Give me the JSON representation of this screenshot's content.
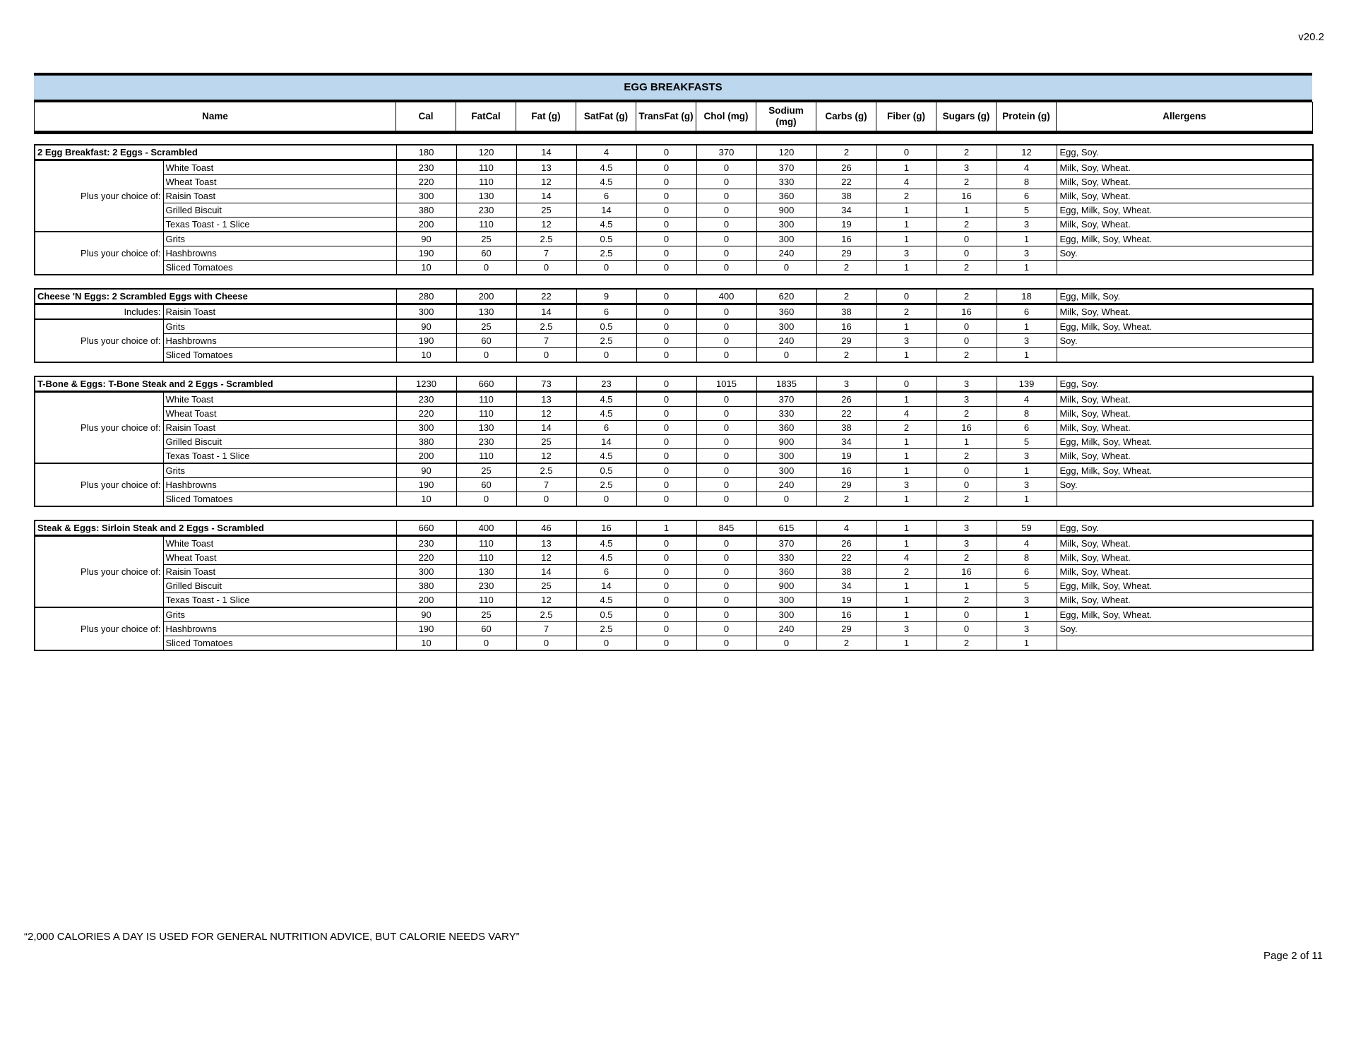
{
  "version_label": "v20.2",
  "banner": {
    "title": "EGG BREAKFASTS",
    "bg_color": "#BDD7EE"
  },
  "columns": [
    "Name",
    "Cal",
    "FatCal",
    "Fat (g)",
    "SatFat (g)",
    "TransFat (g)",
    "Chol (mg)",
    "Sodium (mg)",
    "Carbs (g)",
    "Fiber (g)",
    "Sugars (g)",
    "Protein (g)",
    "Allergens"
  ],
  "sections": [
    {
      "title": "2 Egg Breakfast: 2 Eggs - Scrambled",
      "values": [
        "180",
        "120",
        "14",
        "4",
        "0",
        "370",
        "120",
        "2",
        "0",
        "2",
        "12"
      ],
      "allergens": "Egg, Soy.",
      "groups": [
        {
          "label": "Plus your choice of:",
          "items": [
            {
              "name": "White Toast",
              "values": [
                "230",
                "110",
                "13",
                "4.5",
                "0",
                "0",
                "370",
                "26",
                "1",
                "3",
                "4"
              ],
              "allergens": "Milk, Soy, Wheat."
            },
            {
              "name": "Wheat Toast",
              "values": [
                "220",
                "110",
                "12",
                "4.5",
                "0",
                "0",
                "330",
                "22",
                "4",
                "2",
                "8"
              ],
              "allergens": "Milk, Soy, Wheat."
            },
            {
              "name": "Raisin Toast",
              "values": [
                "300",
                "130",
                "14",
                "6",
                "0",
                "0",
                "360",
                "38",
                "2",
                "16",
                "6"
              ],
              "allergens": "Milk, Soy, Wheat."
            },
            {
              "name": "Grilled Biscuit",
              "values": [
                "380",
                "230",
                "25",
                "14",
                "0",
                "0",
                "900",
                "34",
                "1",
                "1",
                "5"
              ],
              "allergens": "Egg, Milk, Soy, Wheat."
            },
            {
              "name": "Texas Toast - 1 Slice",
              "values": [
                "200",
                "110",
                "12",
                "4.5",
                "0",
                "0",
                "300",
                "19",
                "1",
                "2",
                "3"
              ],
              "allergens": "Milk, Soy, Wheat."
            }
          ]
        },
        {
          "label": "Plus your choice of:",
          "items": [
            {
              "name": "Grits",
              "values": [
                "90",
                "25",
                "2.5",
                "0.5",
                "0",
                "0",
                "300",
                "16",
                "1",
                "0",
                "1"
              ],
              "allergens": "Egg, Milk, Soy, Wheat."
            },
            {
              "name": "Hashbrowns",
              "values": [
                "190",
                "60",
                "7",
                "2.5",
                "0",
                "0",
                "240",
                "29",
                "3",
                "0",
                "3"
              ],
              "allergens": "Soy."
            },
            {
              "name": "Sliced Tomatoes",
              "values": [
                "10",
                "0",
                "0",
                "0",
                "0",
                "0",
                "0",
                "2",
                "1",
                "2",
                "1"
              ],
              "allergens": ""
            }
          ]
        }
      ]
    },
    {
      "title": "Cheese 'N Eggs: 2 Scrambled Eggs with Cheese",
      "values": [
        "280",
        "200",
        "22",
        "9",
        "0",
        "400",
        "620",
        "2",
        "0",
        "2",
        "18"
      ],
      "allergens": "Egg, Milk, Soy.",
      "groups": [
        {
          "label": "Includes:",
          "items": [
            {
              "name": "Raisin Toast",
              "values": [
                "300",
                "130",
                "14",
                "6",
                "0",
                "0",
                "360",
                "38",
                "2",
                "16",
                "6"
              ],
              "allergens": "Milk, Soy, Wheat."
            }
          ]
        },
        {
          "label": "Plus your choice of:",
          "items": [
            {
              "name": "Grits",
              "values": [
                "90",
                "25",
                "2.5",
                "0.5",
                "0",
                "0",
                "300",
                "16",
                "1",
                "0",
                "1"
              ],
              "allergens": "Egg, Milk, Soy, Wheat."
            },
            {
              "name": "Hashbrowns",
              "values": [
                "190",
                "60",
                "7",
                "2.5",
                "0",
                "0",
                "240",
                "29",
                "3",
                "0",
                "3"
              ],
              "allergens": "Soy."
            },
            {
              "name": "Sliced Tomatoes",
              "values": [
                "10",
                "0",
                "0",
                "0",
                "0",
                "0",
                "0",
                "2",
                "1",
                "2",
                "1"
              ],
              "allergens": ""
            }
          ]
        }
      ]
    },
    {
      "title": "T-Bone & Eggs: T-Bone Steak and 2 Eggs - Scrambled",
      "values": [
        "1230",
        "660",
        "73",
        "23",
        "0",
        "1015",
        "1835",
        "3",
        "0",
        "3",
        "139"
      ],
      "allergens": "Egg, Soy.",
      "groups": [
        {
          "label": "Plus your choice of:",
          "items": [
            {
              "name": "White Toast",
              "values": [
                "230",
                "110",
                "13",
                "4.5",
                "0",
                "0",
                "370",
                "26",
                "1",
                "3",
                "4"
              ],
              "allergens": "Milk, Soy, Wheat."
            },
            {
              "name": "Wheat Toast",
              "values": [
                "220",
                "110",
                "12",
                "4.5",
                "0",
                "0",
                "330",
                "22",
                "4",
                "2",
                "8"
              ],
              "allergens": "Milk, Soy, Wheat."
            },
            {
              "name": "Raisin Toast",
              "values": [
                "300",
                "130",
                "14",
                "6",
                "0",
                "0",
                "360",
                "38",
                "2",
                "16",
                "6"
              ],
              "allergens": "Milk, Soy, Wheat."
            },
            {
              "name": "Grilled Biscuit",
              "values": [
                "380",
                "230",
                "25",
                "14",
                "0",
                "0",
                "900",
                "34",
                "1",
                "1",
                "5"
              ],
              "allergens": "Egg, Milk, Soy, Wheat."
            },
            {
              "name": "Texas Toast - 1 Slice",
              "values": [
                "200",
                "110",
                "12",
                "4.5",
                "0",
                "0",
                "300",
                "19",
                "1",
                "2",
                "3"
              ],
              "allergens": "Milk, Soy, Wheat."
            }
          ]
        },
        {
          "label": "Plus your choice of:",
          "items": [
            {
              "name": "Grits",
              "values": [
                "90",
                "25",
                "2.5",
                "0.5",
                "0",
                "0",
                "300",
                "16",
                "1",
                "0",
                "1"
              ],
              "allergens": "Egg, Milk, Soy, Wheat."
            },
            {
              "name": "Hashbrowns",
              "values": [
                "190",
                "60",
                "7",
                "2.5",
                "0",
                "0",
                "240",
                "29",
                "3",
                "0",
                "3"
              ],
              "allergens": "Soy."
            },
            {
              "name": "Sliced Tomatoes",
              "values": [
                "10",
                "0",
                "0",
                "0",
                "0",
                "0",
                "0",
                "2",
                "1",
                "2",
                "1"
              ],
              "allergens": ""
            }
          ]
        }
      ]
    },
    {
      "title": "Steak & Eggs: Sirloin Steak and 2 Eggs - Scrambled",
      "values": [
        "660",
        "400",
        "46",
        "16",
        "1",
        "845",
        "615",
        "4",
        "1",
        "3",
        "59"
      ],
      "allergens": "Egg, Soy.",
      "groups": [
        {
          "label": "Plus your choice of:",
          "items": [
            {
              "name": "White Toast",
              "values": [
                "230",
                "110",
                "13",
                "4.5",
                "0",
                "0",
                "370",
                "26",
                "1",
                "3",
                "4"
              ],
              "allergens": "Milk, Soy, Wheat."
            },
            {
              "name": "Wheat Toast",
              "values": [
                "220",
                "110",
                "12",
                "4.5",
                "0",
                "0",
                "330",
                "22",
                "4",
                "2",
                "8"
              ],
              "allergens": "Milk, Soy, Wheat."
            },
            {
              "name": "Raisin Toast",
              "values": [
                "300",
                "130",
                "14",
                "6",
                "0",
                "0",
                "360",
                "38",
                "2",
                "16",
                "6"
              ],
              "allergens": "Milk, Soy, Wheat."
            },
            {
              "name": "Grilled Biscuit",
              "values": [
                "380",
                "230",
                "25",
                "14",
                "0",
                "0",
                "900",
                "34",
                "1",
                "1",
                "5"
              ],
              "allergens": "Egg, Milk, Soy, Wheat."
            },
            {
              "name": "Texas Toast - 1 Slice",
              "values": [
                "200",
                "110",
                "12",
                "4.5",
                "0",
                "0",
                "300",
                "19",
                "1",
                "2",
                "3"
              ],
              "allergens": "Milk, Soy, Wheat."
            }
          ]
        },
        {
          "label": "Plus your choice of:",
          "items": [
            {
              "name": "Grits",
              "values": [
                "90",
                "25",
                "2.5",
                "0.5",
                "0",
                "0",
                "300",
                "16",
                "1",
                "0",
                "1"
              ],
              "allergens": "Egg, Milk, Soy, Wheat."
            },
            {
              "name": "Hashbrowns",
              "values": [
                "190",
                "60",
                "7",
                "2.5",
                "0",
                "0",
                "240",
                "29",
                "3",
                "0",
                "3"
              ],
              "allergens": "Soy."
            },
            {
              "name": "Sliced Tomatoes",
              "values": [
                "10",
                "0",
                "0",
                "0",
                "0",
                "0",
                "0",
                "2",
                "1",
                "2",
                "1"
              ],
              "allergens": ""
            }
          ]
        }
      ]
    }
  ],
  "footer_note": "“2,000 CALORIES A DAY IS USED FOR GENERAL NUTRITION ADVICE, BUT CALORIE NEEDS VARY”",
  "page_label": "Page 2 of 11"
}
